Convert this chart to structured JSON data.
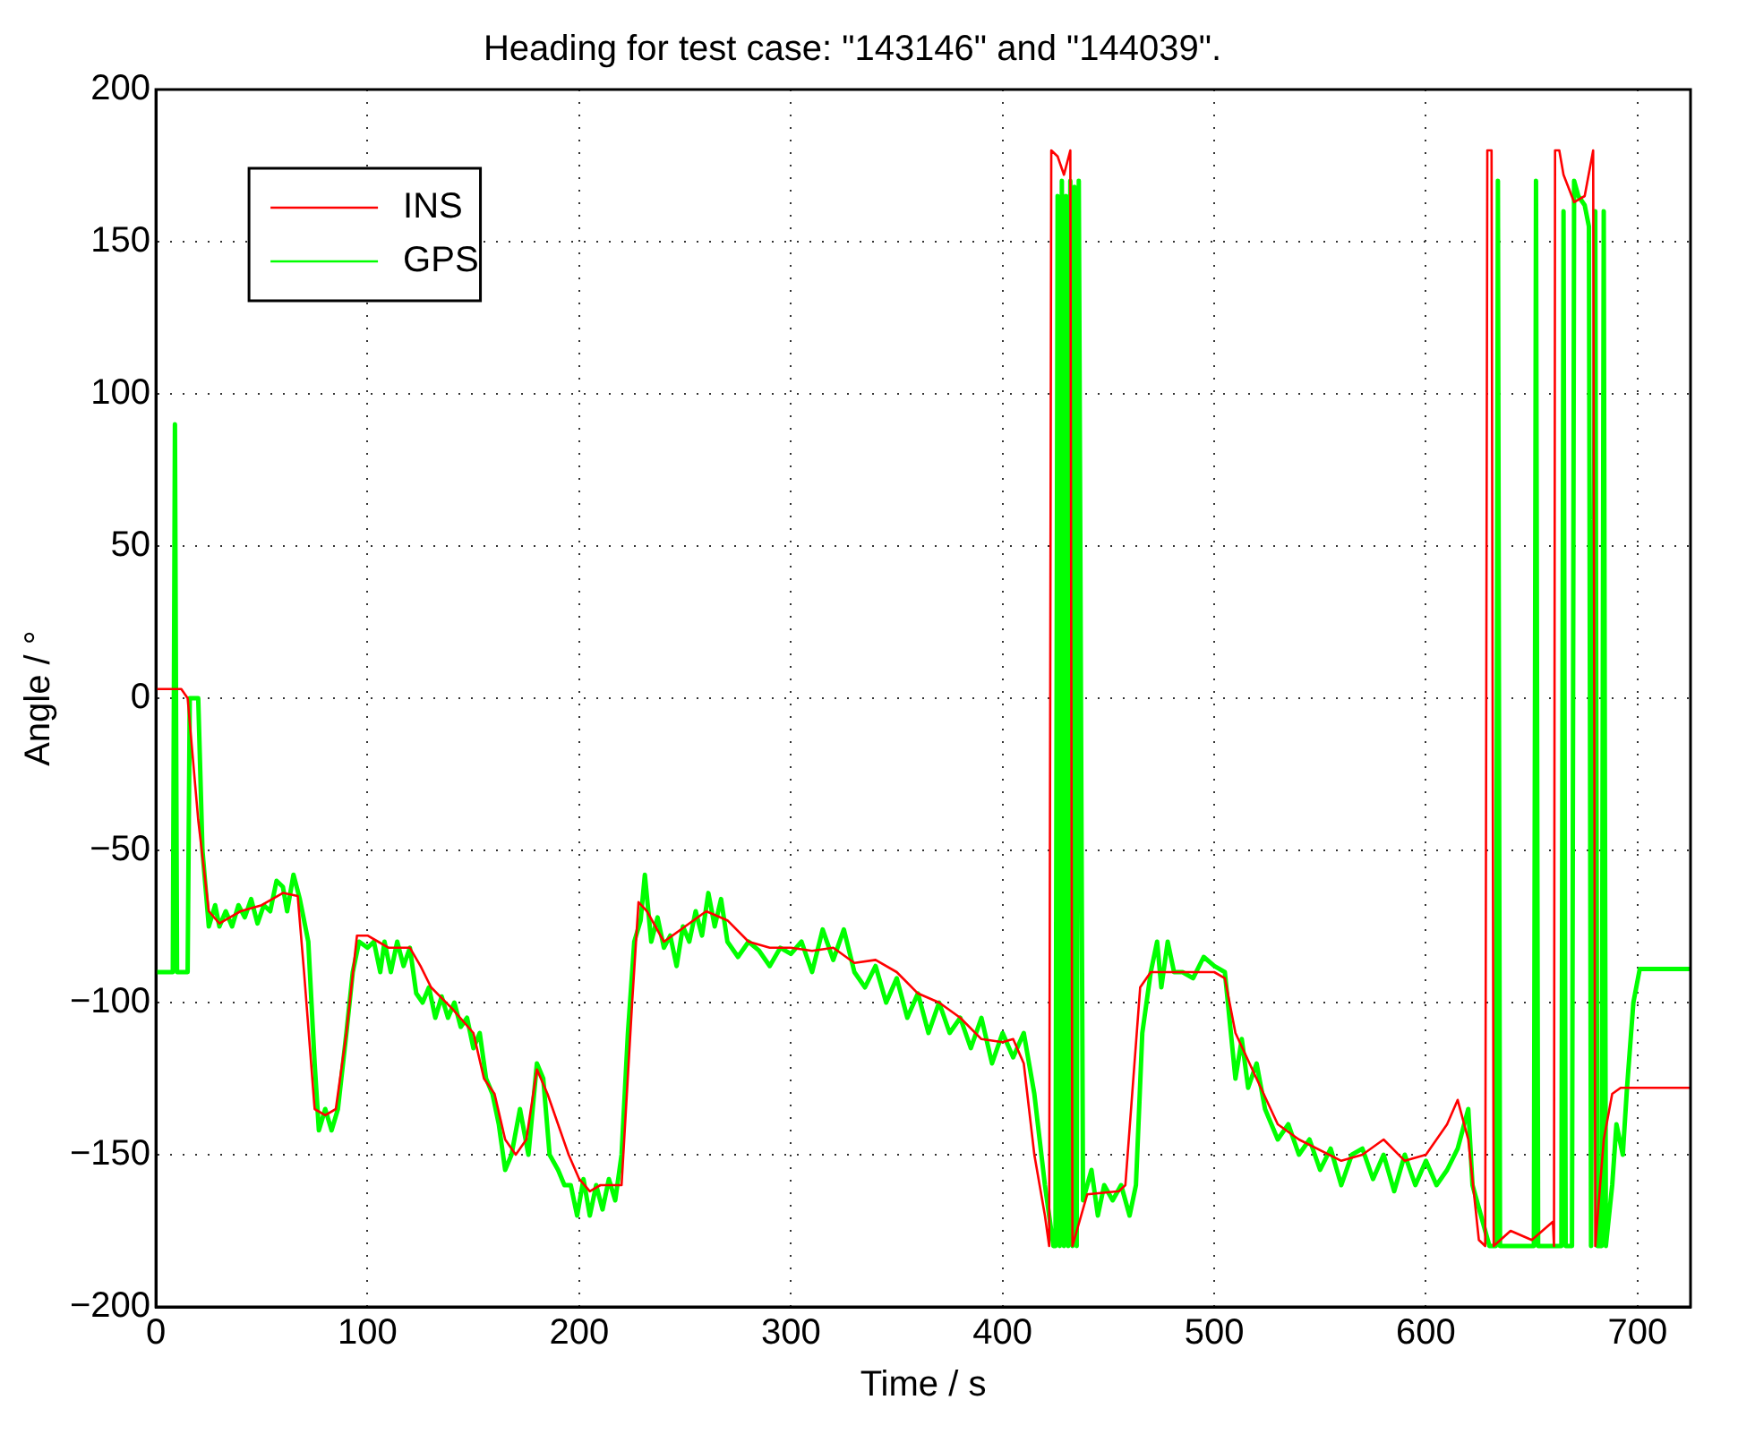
{
  "chart_data": {
    "type": "line",
    "title": "Heading for test case: \"143146\" and \"144039\".",
    "xlabel": "Time / s",
    "ylabel": "Angle / °",
    "xlim": [
      0,
      725
    ],
    "xticks": [
      0,
      100,
      200,
      300,
      400,
      500,
      600,
      700
    ],
    "ylim": [
      -200,
      200
    ],
    "yticks": [
      -200,
      -150,
      -100,
      -50,
      0,
      50,
      100,
      150,
      200
    ],
    "grid": true,
    "legend": "top left",
    "marker": "none",
    "line_style": "solid",
    "series": [
      {
        "name": "INS",
        "color": "#ff0000",
        "x": [
          0,
          12,
          15,
          20,
          25,
          30,
          40,
          50,
          60,
          67,
          70,
          75,
          80,
          85,
          90,
          95,
          100,
          105,
          110,
          120,
          125,
          130,
          140,
          150,
          155,
          160,
          165,
          170,
          175,
          180,
          185,
          190,
          195,
          200,
          205,
          210,
          215,
          220,
          225,
          228,
          232,
          240,
          250,
          260,
          270,
          280,
          290,
          300,
          310,
          320,
          330,
          340,
          350,
          360,
          370,
          380,
          390,
          400,
          405,
          410,
          415,
          420,
          422,
          423,
          426,
          429,
          432,
          433,
          440,
          455,
          458,
          465,
          470,
          500,
          505,
          510,
          520,
          530,
          540,
          560,
          570,
          580,
          590,
          600,
          610,
          615,
          620,
          625,
          628,
          629,
          631,
          632,
          640,
          650,
          660,
          660.5,
          661,
          663,
          665,
          670,
          675,
          679,
          680,
          684,
          688,
          692,
          725
        ],
        "values": [
          3,
          3,
          0,
          -40,
          -70,
          -74,
          -70,
          -68,
          -64,
          -65,
          -90,
          -135,
          -137,
          -135,
          -110,
          -78,
          -78,
          -80,
          -82,
          -82,
          -88,
          -95,
          -102,
          -110,
          -125,
          -130,
          -145,
          -150,
          -145,
          -122,
          -130,
          -140,
          -150,
          -158,
          -162,
          -160,
          -160,
          -160,
          -100,
          -67,
          -70,
          -80,
          -75,
          -70,
          -73,
          -80,
          -82,
          -82,
          -83,
          -82,
          -87,
          -86,
          -90,
          -97,
          -100,
          -105,
          -112,
          -113,
          -112,
          -120,
          -150,
          -170,
          -180,
          180,
          178,
          172,
          180,
          -180,
          -163,
          -162,
          -160,
          -95,
          -90,
          -90,
          -92,
          -110,
          -125,
          -140,
          -145,
          -152,
          -150,
          -145,
          -152,
          -150,
          -140,
          -132,
          -145,
          -178,
          -180,
          180,
          180,
          -180,
          -175,
          -178,
          -172,
          -180,
          180,
          180,
          172,
          163,
          165,
          180,
          -180,
          -145,
          -130,
          -128,
          -128
        ]
      },
      {
        "name": "GPS",
        "color": "#00ff00",
        "x": [
          0,
          8,
          9,
          10,
          15,
          16,
          20,
          22,
          25,
          28,
          30,
          33,
          36,
          39,
          42,
          45,
          48,
          51,
          54,
          57,
          60,
          62,
          65,
          68,
          72,
          75,
          77,
          80,
          83,
          86,
          90,
          93,
          96,
          100,
          103,
          106,
          108,
          111,
          114,
          117,
          120,
          123,
          126,
          129,
          132,
          135,
          138,
          141,
          144,
          147,
          150,
          153,
          156,
          159,
          162,
          165,
          168,
          172,
          176,
          180,
          183,
          186,
          190,
          193,
          196,
          199,
          202,
          205,
          208,
          211,
          214,
          217,
          220,
          223,
          226,
          229,
          231,
          234,
          237,
          240,
          243,
          246,
          249,
          252,
          255,
          258,
          261,
          264,
          267,
          270,
          275,
          280,
          285,
          290,
          295,
          300,
          305,
          310,
          315,
          320,
          325,
          330,
          335,
          340,
          345,
          350,
          355,
          360,
          365,
          370,
          375,
          380,
          385,
          390,
          395,
          400,
          405,
          410,
          415,
          420,
          424,
          425,
          426,
          427,
          428,
          429,
          430,
          431,
          432,
          433,
          434,
          435,
          436,
          438,
          442,
          445,
          448,
          452,
          456,
          460,
          463,
          466,
          470,
          473,
          475,
          478,
          481,
          485,
          490,
          495,
          500,
          505,
          510,
          513,
          516,
          520,
          524,
          527,
          530,
          535,
          540,
          545,
          550,
          555,
          560,
          565,
          570,
          575,
          580,
          585,
          590,
          595,
          600,
          605,
          610,
          615,
          620,
          622,
          626,
          630,
          633,
          634,
          635,
          651,
          652,
          653,
          664,
          665,
          666,
          669,
          670,
          672,
          675,
          677,
          678,
          680,
          681,
          683,
          684,
          685,
          688,
          690,
          693,
          695,
          698,
          701,
          725
        ],
        "values": [
          -90,
          -90,
          90,
          -90,
          -90,
          0,
          0,
          -50,
          -75,
          -68,
          -75,
          -70,
          -75,
          -68,
          -72,
          -66,
          -74,
          -68,
          -70,
          -60,
          -62,
          -70,
          -58,
          -66,
          -80,
          -120,
          -142,
          -135,
          -142,
          -135,
          -110,
          -90,
          -80,
          -82,
          -80,
          -90,
          -80,
          -90,
          -80,
          -88,
          -82,
          -97,
          -100,
          -95,
          -105,
          -98,
          -105,
          -100,
          -108,
          -105,
          -115,
          -110,
          -125,
          -130,
          -140,
          -155,
          -150,
          -135,
          -150,
          -120,
          -125,
          -150,
          -155,
          -160,
          -160,
          -170,
          -158,
          -170,
          -160,
          -168,
          -158,
          -165,
          -150,
          -110,
          -80,
          -73,
          -58,
          -80,
          -72,
          -82,
          -78,
          -88,
          -75,
          -80,
          -70,
          -78,
          -64,
          -75,
          -66,
          -80,
          -85,
          -80,
          -83,
          -88,
          -82,
          -84,
          -80,
          -90,
          -76,
          -86,
          -76,
          -90,
          -95,
          -88,
          -100,
          -92,
          -105,
          -97,
          -110,
          -100,
          -110,
          -105,
          -115,
          -105,
          -120,
          -110,
          -118,
          -110,
          -130,
          -160,
          -180,
          -180,
          165,
          -180,
          170,
          -180,
          165,
          -180,
          170,
          -180,
          168,
          -180,
          170,
          -165,
          -155,
          -170,
          -160,
          -165,
          -160,
          -170,
          -160,
          -110,
          -90,
          -80,
          -95,
          -80,
          -90,
          -90,
          -92,
          -85,
          -88,
          -90,
          -125,
          -112,
          -128,
          -120,
          -135,
          -140,
          -145,
          -140,
          -150,
          -145,
          -155,
          -148,
          -160,
          -150,
          -148,
          -158,
          -150,
          -162,
          -150,
          -160,
          -152,
          -160,
          -155,
          -148,
          -135,
          -160,
          -170,
          -180,
          -180,
          170,
          -180,
          -180,
          170,
          -180,
          -180,
          160,
          -180,
          -180,
          170,
          165,
          162,
          155,
          -180,
          160,
          -180,
          -180,
          160,
          -180,
          -160,
          -140,
          -150,
          -128,
          -100,
          -89,
          -89
        ]
      }
    ]
  }
}
